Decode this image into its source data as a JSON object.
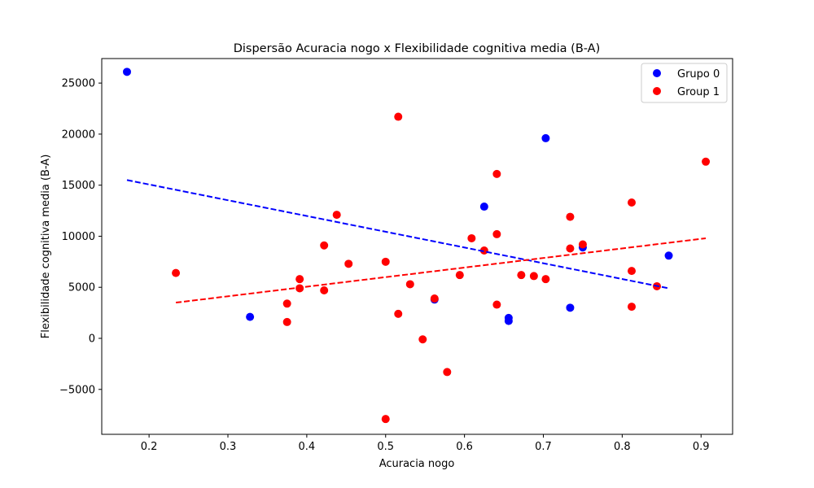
{
  "chart_data": {
    "type": "scatter",
    "title": "Dispersão Acuracia nogo x Flexibilidade cognitiva media (B-A)",
    "xlabel": "Acuracia nogo",
    "ylabel": "Flexibilidade cognitiva media (B-A)",
    "xlim": [
      0.14,
      0.94
    ],
    "ylim": [
      -9400,
      27400
    ],
    "xticks": [
      0.2,
      0.3,
      0.4,
      0.5,
      0.6,
      0.7,
      0.8,
      0.9
    ],
    "xtick_labels": [
      "0.2",
      "0.3",
      "0.4",
      "0.5",
      "0.6",
      "0.7",
      "0.8",
      "0.9"
    ],
    "yticks": [
      -5000,
      0,
      5000,
      10000,
      15000,
      20000,
      25000
    ],
    "ytick_labels": [
      "−5000",
      "0",
      "5000",
      "10000",
      "15000",
      "20000",
      "25000"
    ],
    "legend_position": "top-right",
    "series": [
      {
        "name": "Grupo 0",
        "color": "#0000ff",
        "points": [
          [
            0.172,
            26100
          ],
          [
            0.328,
            2100
          ],
          [
            0.562,
            3800
          ],
          [
            0.625,
            12900
          ],
          [
            0.656,
            2000
          ],
          [
            0.656,
            1700
          ],
          [
            0.703,
            19600
          ],
          [
            0.734,
            3000
          ],
          [
            0.75,
            8900
          ],
          [
            0.859,
            8100
          ]
        ],
        "trend": {
          "x": [
            0.172,
            0.859
          ],
          "y": [
            15500,
            4900
          ]
        }
      },
      {
        "name": "Group 1",
        "color": "#ff0000",
        "points": [
          [
            0.234,
            6400
          ],
          [
            0.375,
            3400
          ],
          [
            0.375,
            1600
          ],
          [
            0.391,
            5800
          ],
          [
            0.391,
            4900
          ],
          [
            0.422,
            9100
          ],
          [
            0.422,
            4700
          ],
          [
            0.438,
            12100
          ],
          [
            0.453,
            7300
          ],
          [
            0.5,
            7500
          ],
          [
            0.5,
            -7900
          ],
          [
            0.516,
            21700
          ],
          [
            0.516,
            2400
          ],
          [
            0.531,
            5300
          ],
          [
            0.547,
            -100
          ],
          [
            0.562,
            3900
          ],
          [
            0.578,
            -3300
          ],
          [
            0.594,
            6200
          ],
          [
            0.609,
            9800
          ],
          [
            0.625,
            8600
          ],
          [
            0.641,
            16100
          ],
          [
            0.641,
            10200
          ],
          [
            0.641,
            3300
          ],
          [
            0.672,
            6200
          ],
          [
            0.688,
            6100
          ],
          [
            0.703,
            5800
          ],
          [
            0.734,
            11900
          ],
          [
            0.734,
            8800
          ],
          [
            0.75,
            9200
          ],
          [
            0.812,
            13300
          ],
          [
            0.812,
            6600
          ],
          [
            0.812,
            3100
          ],
          [
            0.844,
            5100
          ],
          [
            0.906,
            17300
          ]
        ],
        "trend": {
          "x": [
            0.234,
            0.906
          ],
          "y": [
            3500,
            9800
          ]
        }
      }
    ]
  }
}
